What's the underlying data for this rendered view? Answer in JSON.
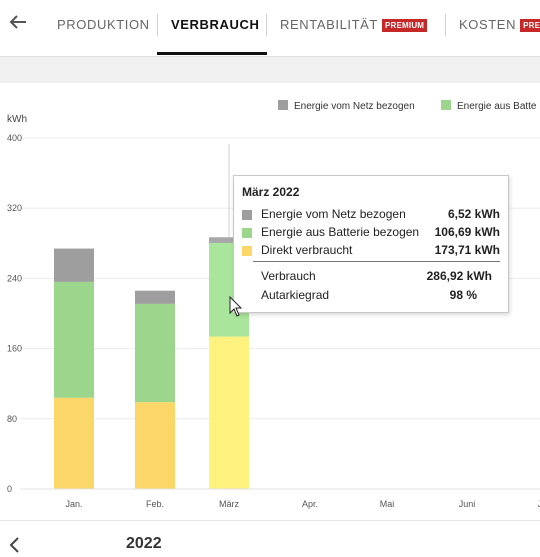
{
  "nav": {
    "tabs": [
      {
        "label": "PRODUKTION"
      },
      {
        "label": "VERBRAUCH"
      },
      {
        "label": "RENTABILITÄT",
        "badge": "PREMIUM"
      },
      {
        "label": "KOSTEN",
        "badge": "PRE"
      }
    ]
  },
  "legend": [
    {
      "label": "Energie vom Netz bezogen",
      "color": "#9e9e9e"
    },
    {
      "label": "Energie aus Batte",
      "color": "#9cd68c"
    }
  ],
  "tooltip": {
    "title": "März 2022",
    "rows": [
      {
        "label": "Energie vom Netz bezogen",
        "value": "6,52 kWh",
        "color": "#9e9e9e"
      },
      {
        "label": "Energie aus Batterie bezogen",
        "value": "106,69 kWh",
        "color": "#9cd68c"
      },
      {
        "label": "Direkt verbraucht",
        "value": "173,71 kWh",
        "color": "#fbd769"
      }
    ],
    "summary": [
      {
        "label": "Verbrauch",
        "value": "286,92 kWh"
      },
      {
        "label": "Autarkiegrad",
        "value": "98 %"
      }
    ]
  },
  "footer": {
    "year": "2022"
  },
  "chart_data": {
    "type": "bar",
    "stacked": true,
    "ylabel": "kWh",
    "ylim": [
      0,
      400
    ],
    "yticks": [
      "0",
      "80",
      "160",
      "240",
      "320",
      "400"
    ],
    "categories": [
      "Jan.",
      "Feb.",
      "März",
      "Apr.",
      "Mai",
      "Juni",
      "J"
    ],
    "series": [
      {
        "name": "Direkt verbraucht",
        "color": "#fbd769",
        "values": [
          104,
          99,
          173.71,
          0,
          0,
          0,
          0
        ]
      },
      {
        "name": "Energie aus Batterie bezogen",
        "color": "#9cd68c",
        "values": [
          132,
          112,
          106.69,
          0,
          0,
          0,
          0
        ]
      },
      {
        "name": "Energie vom Netz bezogen",
        "color": "#9e9e9e",
        "values": [
          38,
          15,
          6.52,
          0,
          0,
          0,
          0
        ]
      }
    ],
    "highlight_index": 2,
    "highlight_colors": {
      "Direkt verbraucht": "#fff27f",
      "Energie aus Batterie bezogen": "#a9e59b",
      "Energie vom Netz bezogen": "#a8a8a8"
    },
    "grid": true,
    "legend_position": "top-right"
  }
}
